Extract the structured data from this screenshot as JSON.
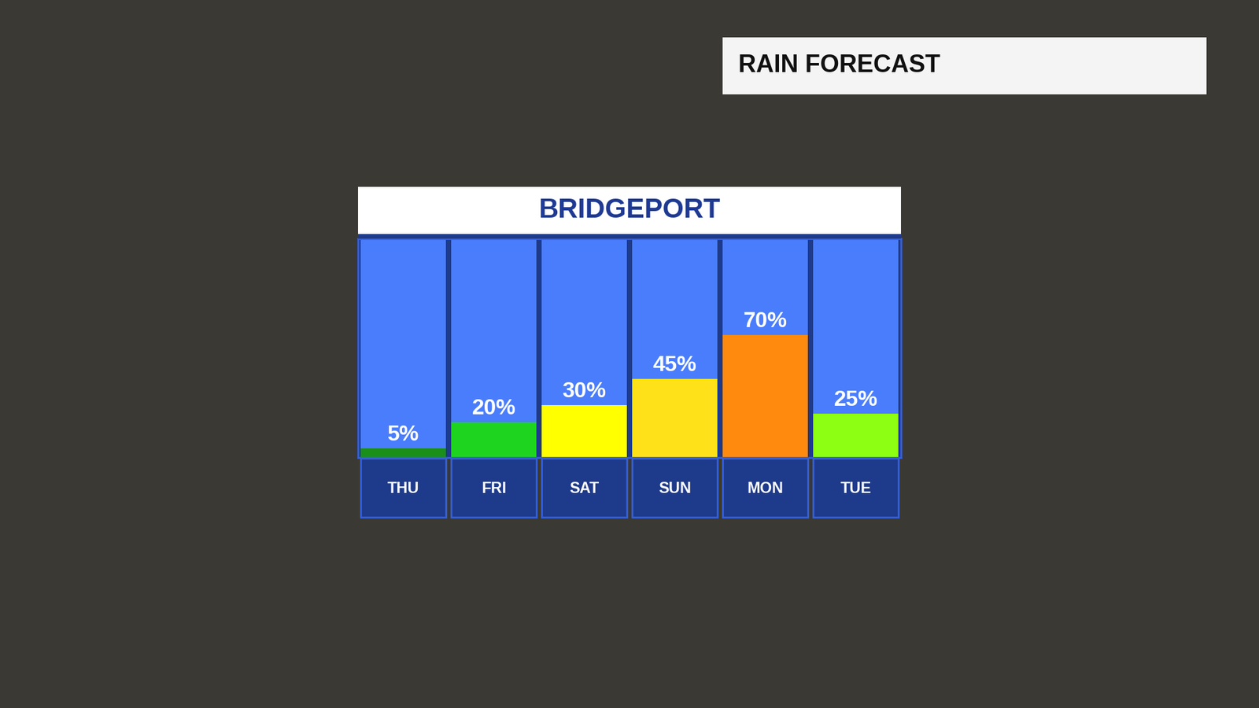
{
  "chart_data": {
    "type": "bar",
    "title": "BRIDGEPORT",
    "subtitle": "RAIN FORECAST",
    "categories": [
      "THU",
      "FRI",
      "SAT",
      "SUN",
      "MON",
      "TUE"
    ],
    "values": [
      5,
      20,
      30,
      45,
      70,
      25
    ],
    "value_labels": [
      "5%",
      "20%",
      "30%",
      "45%",
      "70%",
      "25%"
    ],
    "colors": [
      "#1a8f1a",
      "#1fd41f",
      "#ffff00",
      "#ffe11a",
      "#ff8a0d",
      "#8cff12"
    ],
    "data_labels": true,
    "tick_labels": "x",
    "grid": false,
    "ylim": [
      0,
      125
    ],
    "yticks": []
  }
}
